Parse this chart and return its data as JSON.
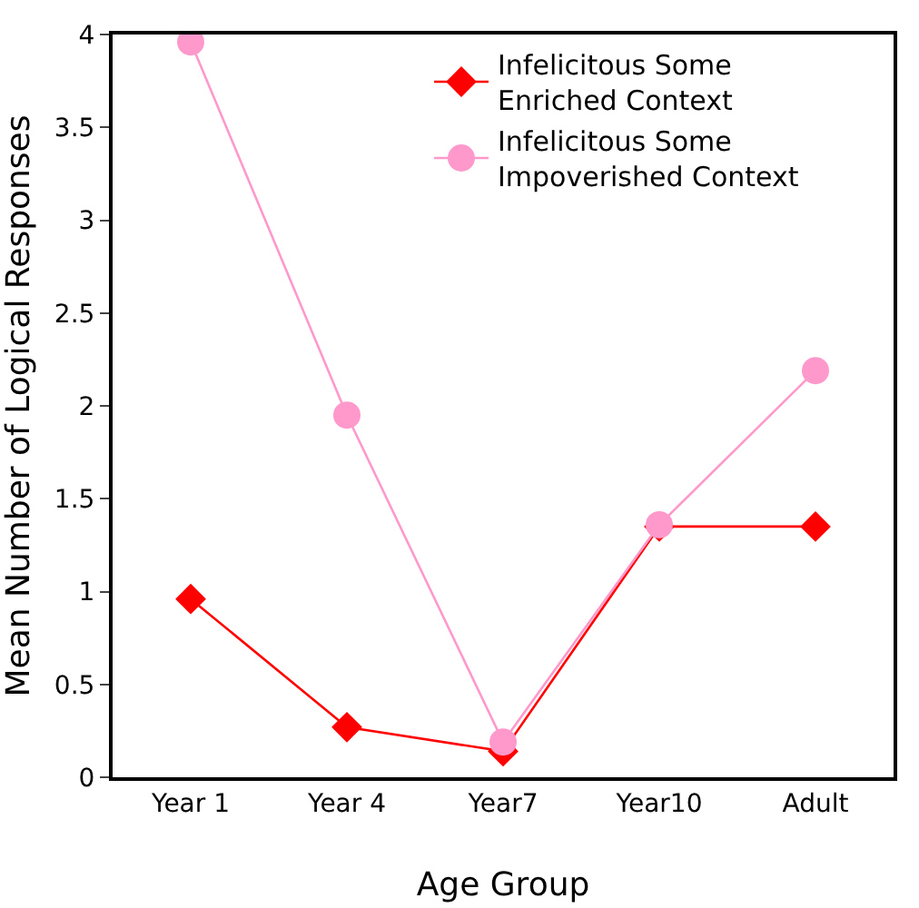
{
  "chart_data": {
    "type": "line",
    "xlabel": "Age Group",
    "ylabel": "Mean Number of Logical Responses",
    "categories": [
      "Year 1",
      "Year 4",
      "Year7",
      "Year10",
      "Adult"
    ],
    "series": [
      {
        "name": "Infelicitous Some Enriched Context",
        "color": "#ff0000",
        "marker": "diamond",
        "values": [
          0.96,
          0.27,
          0.14,
          1.35,
          1.35
        ]
      },
      {
        "name": "Infelicitous Some Impoverished Context",
        "color": "#ff99cc",
        "marker": "circle",
        "values": [
          3.96,
          1.95,
          0.19,
          1.36,
          2.19
        ]
      }
    ],
    "ylim": [
      0,
      4
    ],
    "yticks": [
      0,
      0.5,
      1,
      1.5,
      2,
      2.5,
      3,
      3.5,
      4
    ],
    "grid": false,
    "legend": "top right"
  }
}
